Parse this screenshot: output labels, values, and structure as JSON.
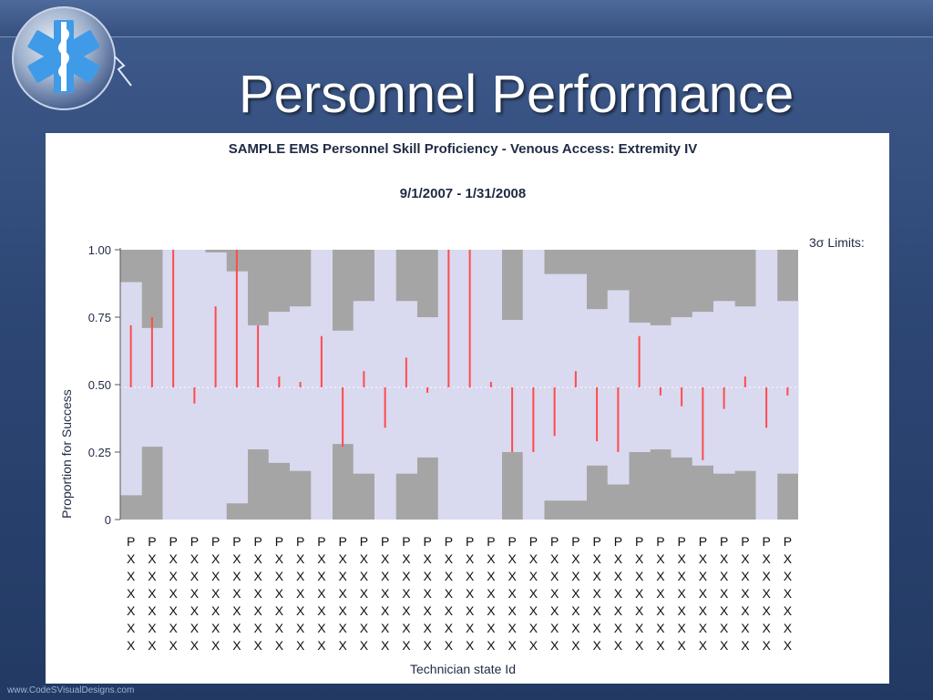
{
  "slide": {
    "title": "Personnel Performance",
    "footer": "www.CodeSVisualDesigns.com"
  },
  "logo": {
    "icon": "star-of-life-icon"
  },
  "colors": {
    "limit_band": "#a5a5a5",
    "within_band": "#d9d9f0",
    "point_line": "#ff4b4b",
    "center_line": "#ffffff"
  },
  "chart_data": {
    "type": "bar",
    "title": "SAMPLE EMS Personnel Skill Proficiency - Venous Access: Extremity IV",
    "subtitle": "9/1/2007 - 1/31/2008",
    "xlabel": "Technician state Id",
    "ylabel": "Proportion for Success",
    "ylim": [
      0,
      1.0
    ],
    "yticks": [
      "0",
      "0.25",
      "0.50",
      "0.75",
      "1.00"
    ],
    "ytick_values": [
      0,
      0.25,
      0.5,
      0.75,
      1.0
    ],
    "legend_title": "3σ Limits:",
    "center_line": 0.49,
    "categories": [
      "PXXXXXX",
      "PXXXXXX",
      "PXXXXXX",
      "PXXXXXX",
      "PXXXXXX",
      "PXXXXXX",
      "PXXXXXX",
      "PXXXXXX",
      "PXXXXXX",
      "PXXXXXX",
      "PXXXXXX",
      "PXXXXXX",
      "PXXXXXX",
      "PXXXXXX",
      "PXXXXXX",
      "PXXXXXX",
      "PXXXXXX",
      "PXXXXXX",
      "PXXXXXX",
      "PXXXXXX",
      "PXXXXXX",
      "PXXXXXX",
      "PXXXXXX",
      "PXXXXXX",
      "PXXXXXX",
      "PXXXXXX",
      "PXXXXXX",
      "PXXXXXX",
      "PXXXXXX",
      "PXXXXXX",
      "PXXXXXX",
      "PXXXXXX"
    ],
    "upper_limits": [
      0.88,
      0.71,
      1.0,
      1.0,
      0.99,
      0.92,
      0.72,
      0.77,
      0.79,
      1.0,
      0.7,
      0.81,
      1.0,
      0.81,
      0.75,
      1.0,
      1.0,
      1.0,
      0.74,
      1.0,
      0.91,
      0.91,
      0.78,
      0.85,
      0.73,
      0.72,
      0.75,
      0.77,
      0.81,
      0.79,
      1.0,
      0.81
    ],
    "lower_limits": [
      0.09,
      0.27,
      0.0,
      0.0,
      0.0,
      0.06,
      0.26,
      0.21,
      0.18,
      0.0,
      0.28,
      0.17,
      0.0,
      0.17,
      0.23,
      0.0,
      0.0,
      0.0,
      0.25,
      0.0,
      0.07,
      0.07,
      0.2,
      0.13,
      0.25,
      0.26,
      0.23,
      0.2,
      0.17,
      0.18,
      0.0,
      0.17
    ],
    "values": [
      0.72,
      0.75,
      1.0,
      0.43,
      0.79,
      1.0,
      0.72,
      0.53,
      0.51,
      0.68,
      0.27,
      0.55,
      0.34,
      0.6,
      0.47,
      1.0,
      1.0,
      0.51,
      0.25,
      0.25,
      0.31,
      0.55,
      0.29,
      0.25,
      0.68,
      0.46,
      0.42,
      0.22,
      0.41,
      0.53,
      0.34,
      0.46
    ]
  }
}
